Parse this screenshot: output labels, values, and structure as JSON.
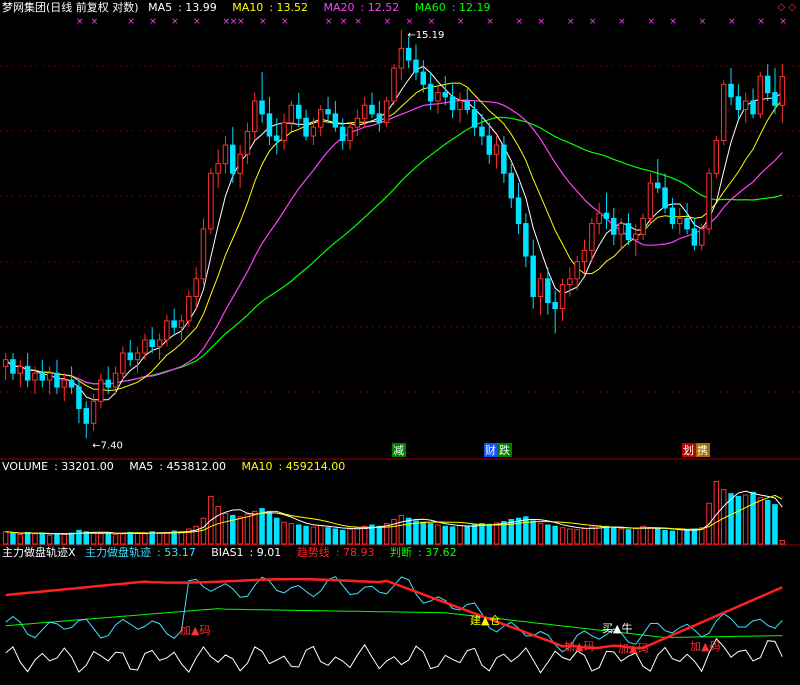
{
  "chart_data": [
    {
      "type": "candlestick",
      "title": "梦网集团(日线 前复权 对数)",
      "indicators": [
        {
          "label": "MA5",
          "value": "13.99",
          "color": "#ffffff"
        },
        {
          "label": "MA10",
          "value": "13.52",
          "color": "#ffff00"
        },
        {
          "label": "MA20",
          "value": "12.52",
          "color": "#ff40ff"
        },
        {
          "label": "MA60",
          "value": "12.19",
          "color": "#00ff00"
        }
      ],
      "annotations": {
        "high_label": "15.19",
        "low_label": "7.40"
      },
      "event_tags": [
        {
          "text": "减",
          "color": "#ffffff",
          "bg": "#008000"
        },
        {
          "text": "财",
          "color": "#ffffff",
          "bg": "#1050ff"
        },
        {
          "text": "跌",
          "color": "#ffffff",
          "bg": "#008000"
        },
        {
          "text": "划",
          "color": "#ffffff",
          "bg": "#c00000"
        },
        {
          "text": "携",
          "color": "#ffffff",
          "bg": "#a07000"
        }
      ],
      "candles": [
        [
          8.4,
          8.6,
          8.2,
          8.5
        ],
        [
          8.5,
          8.6,
          8.2,
          8.3
        ],
        [
          8.3,
          8.5,
          8.1,
          8.4
        ],
        [
          8.4,
          8.6,
          8.1,
          8.2
        ],
        [
          8.2,
          8.4,
          8.0,
          8.3
        ],
        [
          8.3,
          8.5,
          8.1,
          8.2
        ],
        [
          8.2,
          8.4,
          8.0,
          8.3
        ],
        [
          8.3,
          8.5,
          8.0,
          8.1
        ],
        [
          8.1,
          8.3,
          7.9,
          8.2
        ],
        [
          8.2,
          8.4,
          8.0,
          8.1
        ],
        [
          8.1,
          8.2,
          7.6,
          7.8
        ],
        [
          7.8,
          7.9,
          7.4,
          7.6
        ],
        [
          7.6,
          8.0,
          7.5,
          7.9
        ],
        [
          7.9,
          8.3,
          7.8,
          8.2
        ],
        [
          8.2,
          8.4,
          8.0,
          8.1
        ],
        [
          8.1,
          8.4,
          8.0,
          8.3
        ],
        [
          8.3,
          8.7,
          8.2,
          8.6
        ],
        [
          8.6,
          8.8,
          8.4,
          8.5
        ],
        [
          8.5,
          8.7,
          8.3,
          8.6
        ],
        [
          8.6,
          8.9,
          8.5,
          8.8
        ],
        [
          8.8,
          9.0,
          8.6,
          8.7
        ],
        [
          8.7,
          8.9,
          8.5,
          8.8
        ],
        [
          8.8,
          9.2,
          8.7,
          9.1
        ],
        [
          9.1,
          9.3,
          8.9,
          9.0
        ],
        [
          9.0,
          9.2,
          8.8,
          9.1
        ],
        [
          9.1,
          9.6,
          9.0,
          9.5
        ],
        [
          9.5,
          10.0,
          9.3,
          9.8
        ],
        [
          9.8,
          10.9,
          9.7,
          10.7
        ],
        [
          10.7,
          11.9,
          10.6,
          11.8
        ],
        [
          11.8,
          12.3,
          11.5,
          12.0
        ],
        [
          12.0,
          12.6,
          11.8,
          12.4
        ],
        [
          12.4,
          12.8,
          11.6,
          11.8
        ],
        [
          11.8,
          12.4,
          11.5,
          12.2
        ],
        [
          12.2,
          12.9,
          12.0,
          12.7
        ],
        [
          12.7,
          13.6,
          12.5,
          13.4
        ],
        [
          13.4,
          14.1,
          12.9,
          13.1
        ],
        [
          13.1,
          13.5,
          12.4,
          12.6
        ],
        [
          12.6,
          13.0,
          12.2,
          12.5
        ],
        [
          12.5,
          13.1,
          12.3,
          12.9
        ],
        [
          12.9,
          13.4,
          12.7,
          13.3
        ],
        [
          13.3,
          13.6,
          12.8,
          13.0
        ],
        [
          13.0,
          13.2,
          12.5,
          12.6
        ],
        [
          12.6,
          13.0,
          12.4,
          12.8
        ],
        [
          12.8,
          13.3,
          12.6,
          13.2
        ],
        [
          13.2,
          13.5,
          12.9,
          13.1
        ],
        [
          13.1,
          13.4,
          12.7,
          12.8
        ],
        [
          12.8,
          13.0,
          12.3,
          12.5
        ],
        [
          12.5,
          12.9,
          12.3,
          12.8
        ],
        [
          12.8,
          13.2,
          12.6,
          13.0
        ],
        [
          13.0,
          13.5,
          12.8,
          13.3
        ],
        [
          13.3,
          13.6,
          13.0,
          13.1
        ],
        [
          13.1,
          13.4,
          12.7,
          12.9
        ],
        [
          12.9,
          13.5,
          12.8,
          13.4
        ],
        [
          13.4,
          14.3,
          13.3,
          14.2
        ],
        [
          14.2,
          15.19,
          13.9,
          14.7
        ],
        [
          14.7,
          15.0,
          14.2,
          14.4
        ],
        [
          14.4,
          14.8,
          13.9,
          14.1
        ],
        [
          14.1,
          14.4,
          13.6,
          13.8
        ],
        [
          13.8,
          14.1,
          13.2,
          13.4
        ],
        [
          13.4,
          13.8,
          13.1,
          13.6
        ],
        [
          13.6,
          14.0,
          13.3,
          13.5
        ],
        [
          13.5,
          13.8,
          13.0,
          13.2
        ],
        [
          13.2,
          13.6,
          12.9,
          13.4
        ],
        [
          13.4,
          13.7,
          13.1,
          13.2
        ],
        [
          13.2,
          13.4,
          12.6,
          12.8
        ],
        [
          12.8,
          13.1,
          12.4,
          12.6
        ],
        [
          12.6,
          12.9,
          12.0,
          12.2
        ],
        [
          12.2,
          12.6,
          11.9,
          12.4
        ],
        [
          12.4,
          12.6,
          11.6,
          11.8
        ],
        [
          11.8,
          12.0,
          11.1,
          11.3
        ],
        [
          11.3,
          11.6,
          10.6,
          10.8
        ],
        [
          10.8,
          11.0,
          10.0,
          10.2
        ],
        [
          10.2,
          10.5,
          9.3,
          9.5
        ],
        [
          9.5,
          9.9,
          9.2,
          9.8
        ],
        [
          9.8,
          10.0,
          9.2,
          9.4
        ],
        [
          9.4,
          9.6,
          8.9,
          9.3
        ],
        [
          9.3,
          9.8,
          9.1,
          9.7
        ],
        [
          9.7,
          10.0,
          9.5,
          9.8
        ],
        [
          9.8,
          10.2,
          9.6,
          10.1
        ],
        [
          10.1,
          10.5,
          9.9,
          10.3
        ],
        [
          10.3,
          10.9,
          10.1,
          10.8
        ],
        [
          10.8,
          11.2,
          10.6,
          11.0
        ],
        [
          11.0,
          11.4,
          10.7,
          10.9
        ],
        [
          10.9,
          11.1,
          10.4,
          10.6
        ],
        [
          10.6,
          10.9,
          10.3,
          10.8
        ],
        [
          10.8,
          11.0,
          10.4,
          10.5
        ],
        [
          10.5,
          10.8,
          10.2,
          10.6
        ],
        [
          10.6,
          11.0,
          10.5,
          10.9
        ],
        [
          10.9,
          11.8,
          10.8,
          11.6
        ],
        [
          11.6,
          12.1,
          11.4,
          11.5
        ],
        [
          11.5,
          11.8,
          11.0,
          11.1
        ],
        [
          11.1,
          11.3,
          10.7,
          10.8
        ],
        [
          10.8,
          11.1,
          10.6,
          10.9
        ],
        [
          10.9,
          11.2,
          10.6,
          10.7
        ],
        [
          10.7,
          10.9,
          10.3,
          10.4
        ],
        [
          10.4,
          10.8,
          10.3,
          10.7
        ],
        [
          10.7,
          11.9,
          10.6,
          11.8
        ],
        [
          11.8,
          12.6,
          11.7,
          12.5
        ],
        [
          12.5,
          13.9,
          12.4,
          13.8
        ],
        [
          13.8,
          14.2,
          13.3,
          13.5
        ],
        [
          13.5,
          13.8,
          13.0,
          13.2
        ],
        [
          13.2,
          13.6,
          12.9,
          13.4
        ],
        [
          13.4,
          13.7,
          13.0,
          13.1
        ],
        [
          13.1,
          14.1,
          13.0,
          14.0
        ],
        [
          14.0,
          14.3,
          13.4,
          13.6
        ],
        [
          13.6,
          14.2,
          13.1,
          13.3
        ],
        [
          13.3,
          14.3,
          12.9,
          13.99
        ]
      ],
      "ylim": [
        7.2,
        15.4
      ],
      "scale": "log"
    },
    {
      "type": "bar",
      "title": "VOLUME",
      "indicators": [
        {
          "label": "VOLUME",
          "value": "33201.00",
          "color": "#ffffff"
        },
        {
          "label": "MA5",
          "value": "453812.00",
          "color": "#ffffff"
        },
        {
          "label": "MA10",
          "value": "459214.00",
          "color": "#ffff00"
        }
      ],
      "values": [
        18,
        16,
        14,
        17,
        15,
        16,
        13,
        15,
        14,
        16,
        20,
        18,
        17,
        15,
        16,
        14,
        15,
        17,
        16,
        15,
        18,
        16,
        17,
        19,
        18,
        22,
        26,
        38,
        70,
        55,
        45,
        42,
        40,
        44,
        48,
        52,
        46,
        38,
        32,
        30,
        28,
        26,
        25,
        27,
        24,
        22,
        20,
        22,
        24,
        26,
        28,
        26,
        30,
        36,
        42,
        38,
        34,
        32,
        30,
        28,
        26,
        25,
        27,
        26,
        28,
        30,
        29,
        31,
        33,
        36,
        38,
        40,
        34,
        30,
        28,
        26,
        24,
        22,
        21,
        23,
        25,
        27,
        26,
        24,
        22,
        21,
        23,
        26,
        24,
        22,
        20,
        19,
        21,
        20,
        22,
        24,
        60,
        92,
        80,
        74,
        70,
        72,
        76,
        68,
        64,
        58,
        5
      ],
      "ylim": [
        0,
        100
      ]
    },
    {
      "type": "line",
      "title": "主力做盘轨迹X",
      "indicators": [
        {
          "label": "主力做盘轨迹X",
          "value": "",
          "color": "#ffffff"
        },
        {
          "label": "主力做盘轨迹",
          "value": "53.17",
          "color": "#40e0ff"
        },
        {
          "label": "BIAS1",
          "value": "9.01",
          "color": "#ffffff"
        },
        {
          "label": "趋势线",
          "value": "78.93",
          "color": "#ff2020"
        },
        {
          "label": "判断",
          "value": "37.62",
          "color": "#00ff00"
        }
      ],
      "signals": [
        {
          "text": "加▲码",
          "color": "#ff3030"
        },
        {
          "text": "建▲仓",
          "color": "#ffff00"
        },
        {
          "text": "加▲码",
          "color": "#ff3030"
        },
        {
          "text": "买▲牛",
          "color": "#ffffff"
        },
        {
          "text": "加▲码",
          "color": "#ff3030"
        },
        {
          "text": "加▲码",
          "color": "#ff3030"
        }
      ],
      "ylim": [
        0,
        100
      ]
    }
  ]
}
